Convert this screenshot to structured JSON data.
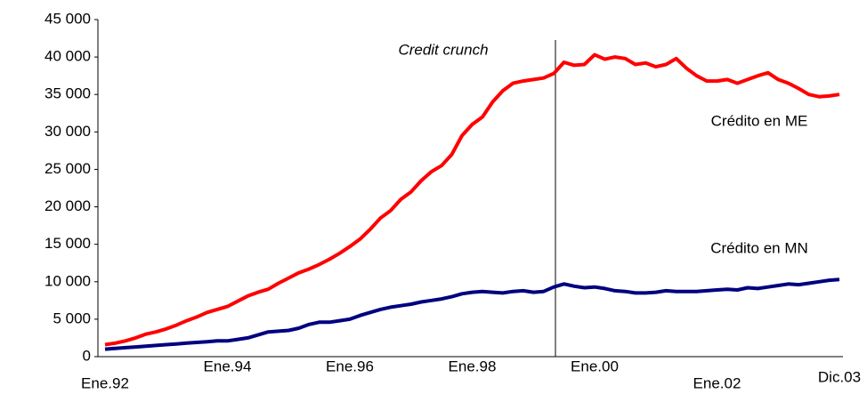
{
  "chart_data": {
    "type": "line",
    "annotations": [
      "Credit crunch"
    ],
    "categories": [
      "Ene.92",
      null,
      null,
      null,
      null,
      null,
      null,
      null,
      null,
      null,
      null,
      null,
      "Ene.94",
      null,
      null,
      null,
      null,
      null,
      null,
      null,
      null,
      null,
      null,
      null,
      "Ene.96",
      null,
      null,
      null,
      null,
      null,
      null,
      null,
      null,
      null,
      null,
      null,
      "Ene.98",
      null,
      null,
      null,
      null,
      null,
      null,
      null,
      null,
      null,
      null,
      null,
      "Ene.00",
      null,
      null,
      null,
      null,
      null,
      null,
      null,
      null,
      null,
      null,
      null,
      "Ene.02",
      null,
      null,
      null,
      null,
      null,
      null,
      null,
      null,
      null,
      null,
      null,
      "Dic.03"
    ],
    "series": [
      {
        "name": "Crédito en ME",
        "color": "#ff0000",
        "values": [
          1600,
          1800,
          2100,
          2500,
          3000,
          3300,
          3700,
          4200,
          4800,
          5300,
          5900,
          6300,
          6700,
          7400,
          8100,
          8600,
          9000,
          9800,
          10500,
          11200,
          11700,
          12300,
          13000,
          13800,
          14700,
          15700,
          17000,
          18500,
          19500,
          21000,
          22000,
          23500,
          24700,
          25500,
          27000,
          29500,
          31000,
          32000,
          34000,
          35500,
          36500,
          36800,
          37000,
          37200,
          37800,
          39300,
          38900,
          39000,
          40300,
          39700,
          40000,
          39800,
          39000,
          39200,
          38700,
          39000,
          39800,
          38500,
          37500,
          36800,
          36800,
          37000,
          36500,
          37000,
          37500,
          37900,
          37000,
          36500,
          35800,
          35000,
          34700,
          34800,
          35000
        ]
      },
      {
        "name": "Crédito en MN",
        "color": "#000080",
        "values": [
          1000,
          1100,
          1200,
          1300,
          1400,
          1500,
          1600,
          1700,
          1800,
          1900,
          2000,
          2100,
          2100,
          2300,
          2500,
          2900,
          3300,
          3400,
          3500,
          3800,
          4300,
          4600,
          4600,
          4800,
          5000,
          5500,
          5900,
          6300,
          6600,
          6800,
          7000,
          7300,
          7500,
          7700,
          8000,
          8400,
          8600,
          8700,
          8600,
          8500,
          8700,
          8800,
          8600,
          8700,
          9300,
          9700,
          9400,
          9200,
          9300,
          9100,
          8800,
          8700,
          8500,
          8500,
          8600,
          8800,
          8700,
          8700,
          8700,
          8800,
          8900,
          9000,
          8900,
          9200,
          9100,
          9300,
          9500,
          9700,
          9600,
          9800,
          10000,
          10200,
          10300
        ]
      }
    ],
    "ylim": [
      0,
      45000
    ],
    "yticks": [
      0,
      {
        "value": 5000,
        "label": "5 000"
      },
      {
        "value": 10000,
        "label": "10 000"
      },
      {
        "value": 15000,
        "label": "15 000"
      },
      {
        "value": 20000,
        "label": "20 000"
      },
      {
        "value": 25000,
        "label": "25 000"
      },
      {
        "value": 30000,
        "label": "30 000"
      },
      {
        "value": 35000,
        "label": "35 000"
      },
      {
        "value": 40000,
        "label": "40 000"
      },
      {
        "value": 45000,
        "label": "45 000"
      }
    ],
    "grid": false
  }
}
